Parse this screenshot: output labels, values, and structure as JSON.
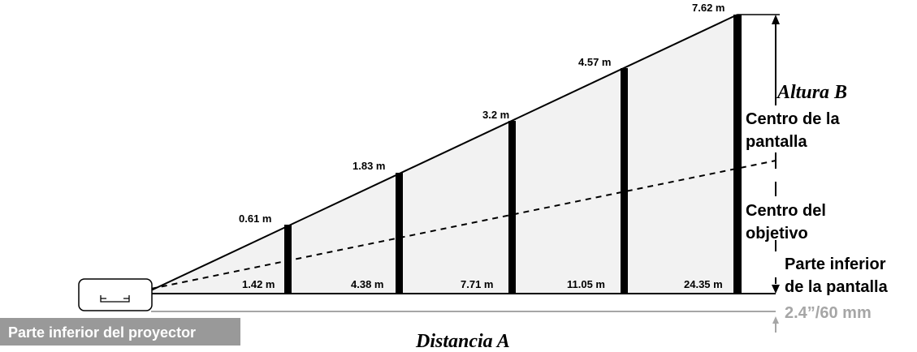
{
  "screens": [
    {
      "height": "0.61 m",
      "distance": "1.42 m"
    },
    {
      "height": "1.83 m",
      "distance": "4.38 m"
    },
    {
      "height": "3.2 m",
      "distance": "7.71 m"
    },
    {
      "height": "4.57 m",
      "distance": "11.05 m"
    },
    {
      "height": "7.62 m",
      "distance": "24.35 m"
    }
  ],
  "labels": {
    "altura": "Altura B",
    "distancia": "Distancia A",
    "centro_pantalla_1": "Centro de la",
    "centro_pantalla_2": "pantalla",
    "centro_objetivo_1": "Centro del",
    "centro_objetivo_2": "objetivo",
    "parte_inferior_pantalla_1": "Parte inferior",
    "parte_inferior_pantalla_2": "de la pantalla",
    "offset": "2.4”/60 mm",
    "parte_inferior_proyector": "Parte inferior del proyector"
  },
  "colors": {
    "line": "#000000",
    "fill": "#f2f2f2",
    "gray": "#a6a6a6",
    "badge_bg": "#999999",
    "badge_text": "#ffffff"
  }
}
